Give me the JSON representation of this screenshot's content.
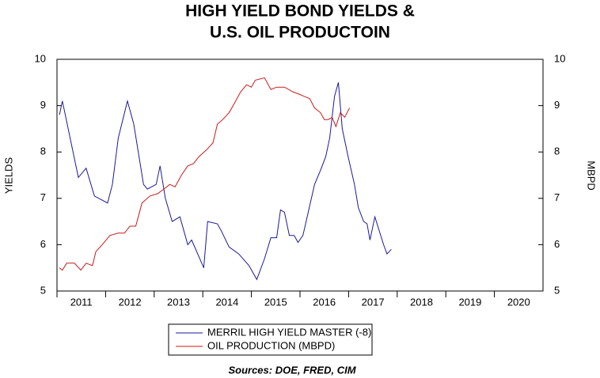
{
  "chart_data": {
    "type": "line",
    "title": [
      "HIGH YIELD BOND YIELDS &",
      "U.S. OIL PRODUCTOIN"
    ],
    "ylabel": "YIELDS",
    "y2label": "MBPD",
    "source": "Sources:  DOE, FRED, CIM",
    "xlim": [
      2011,
      2021
    ],
    "xticks": [
      {
        "value": 2011,
        "label": "2011"
      },
      {
        "value": 2012,
        "label": "2012"
      },
      {
        "value": 2013,
        "label": "2013"
      },
      {
        "value": 2014,
        "label": "2014"
      },
      {
        "value": 2015,
        "label": "2015"
      },
      {
        "value": 2016,
        "label": "2016"
      },
      {
        "value": 2017,
        "label": "2017"
      },
      {
        "value": 2018,
        "label": "2018"
      },
      {
        "value": 2019,
        "label": "2019"
      },
      {
        "value": 2020,
        "label": "2020"
      }
    ],
    "ylim": [
      5,
      10
    ],
    "yticks": [
      5,
      6,
      7,
      8,
      9,
      10
    ],
    "y2lim": [
      5,
      10
    ],
    "y2ticks": [
      5,
      6,
      7,
      8,
      9,
      10
    ],
    "legend": "bottom",
    "series": [
      {
        "name": "MERRIL HIGH YIELD MASTER (-8)",
        "color": "#1a1a99",
        "x": [
          2011.05,
          2011.11,
          2011.44,
          2011.6,
          2011.77,
          2012.04,
          2012.14,
          2012.26,
          2012.45,
          2012.58,
          2012.78,
          2012.86,
          2013.04,
          2013.12,
          2013.23,
          2013.37,
          2013.53,
          2013.69,
          2013.77,
          2014.02,
          2014.1,
          2014.3,
          2014.38,
          2014.54,
          2014.74,
          2014.95,
          2015.11,
          2015.27,
          2015.4,
          2015.52,
          2015.6,
          2015.68,
          2015.78,
          2015.88,
          2015.96,
          2016.06,
          2016.17,
          2016.3,
          2016.42,
          2016.53,
          2016.61,
          2016.71,
          2016.79,
          2016.87,
          2016.99,
          2017.12,
          2017.2,
          2017.31,
          2017.38,
          2017.44,
          2017.54,
          2017.72,
          2017.79,
          2017.88
        ],
        "values": [
          8.8,
          9.1,
          7.45,
          7.65,
          7.05,
          6.9,
          7.3,
          8.3,
          9.1,
          8.6,
          7.3,
          7.2,
          7.3,
          7.7,
          7.0,
          6.5,
          6.6,
          6.0,
          6.1,
          5.5,
          6.5,
          6.45,
          6.3,
          5.95,
          5.8,
          5.55,
          5.25,
          5.7,
          6.15,
          6.15,
          6.75,
          6.7,
          6.2,
          6.2,
          6.05,
          6.2,
          6.7,
          7.3,
          7.6,
          7.9,
          8.3,
          9.2,
          9.5,
          8.5,
          7.9,
          7.3,
          6.8,
          6.5,
          6.45,
          6.1,
          6.6,
          6.0,
          5.8,
          5.9
        ]
      },
      {
        "name": "OIL PRODUCTION (MBPD)",
        "color": "#cc1a1a",
        "axis": "y2",
        "x": [
          2011.05,
          2011.11,
          2011.2,
          2011.36,
          2011.49,
          2011.6,
          2011.73,
          2011.8,
          2011.93,
          2012.09,
          2012.26,
          2012.39,
          2012.5,
          2012.62,
          2012.75,
          2012.91,
          2013.07,
          2013.2,
          2013.32,
          2013.43,
          2013.56,
          2013.69,
          2013.81,
          2013.92,
          2014.08,
          2014.21,
          2014.3,
          2014.41,
          2014.54,
          2014.65,
          2014.78,
          2014.9,
          2015.0,
          2015.08,
          2015.27,
          2015.4,
          2015.52,
          2015.68,
          2015.85,
          2015.98,
          2016.09,
          2016.2,
          2016.3,
          2016.42,
          2016.5,
          2016.58,
          2016.66,
          2016.74,
          2016.83,
          2016.92,
          2017.02
        ],
        "values": [
          5.5,
          5.45,
          5.6,
          5.6,
          5.45,
          5.6,
          5.55,
          5.85,
          6.0,
          6.2,
          6.25,
          6.25,
          6.4,
          6.4,
          6.9,
          7.05,
          7.1,
          7.2,
          7.3,
          7.25,
          7.5,
          7.7,
          7.75,
          7.9,
          8.05,
          8.2,
          8.6,
          8.7,
          8.85,
          9.05,
          9.3,
          9.45,
          9.4,
          9.55,
          9.6,
          9.35,
          9.4,
          9.4,
          9.3,
          9.25,
          9.2,
          9.15,
          8.95,
          8.85,
          8.7,
          8.7,
          8.75,
          8.55,
          8.85,
          8.75,
          8.95
        ]
      }
    ]
  }
}
